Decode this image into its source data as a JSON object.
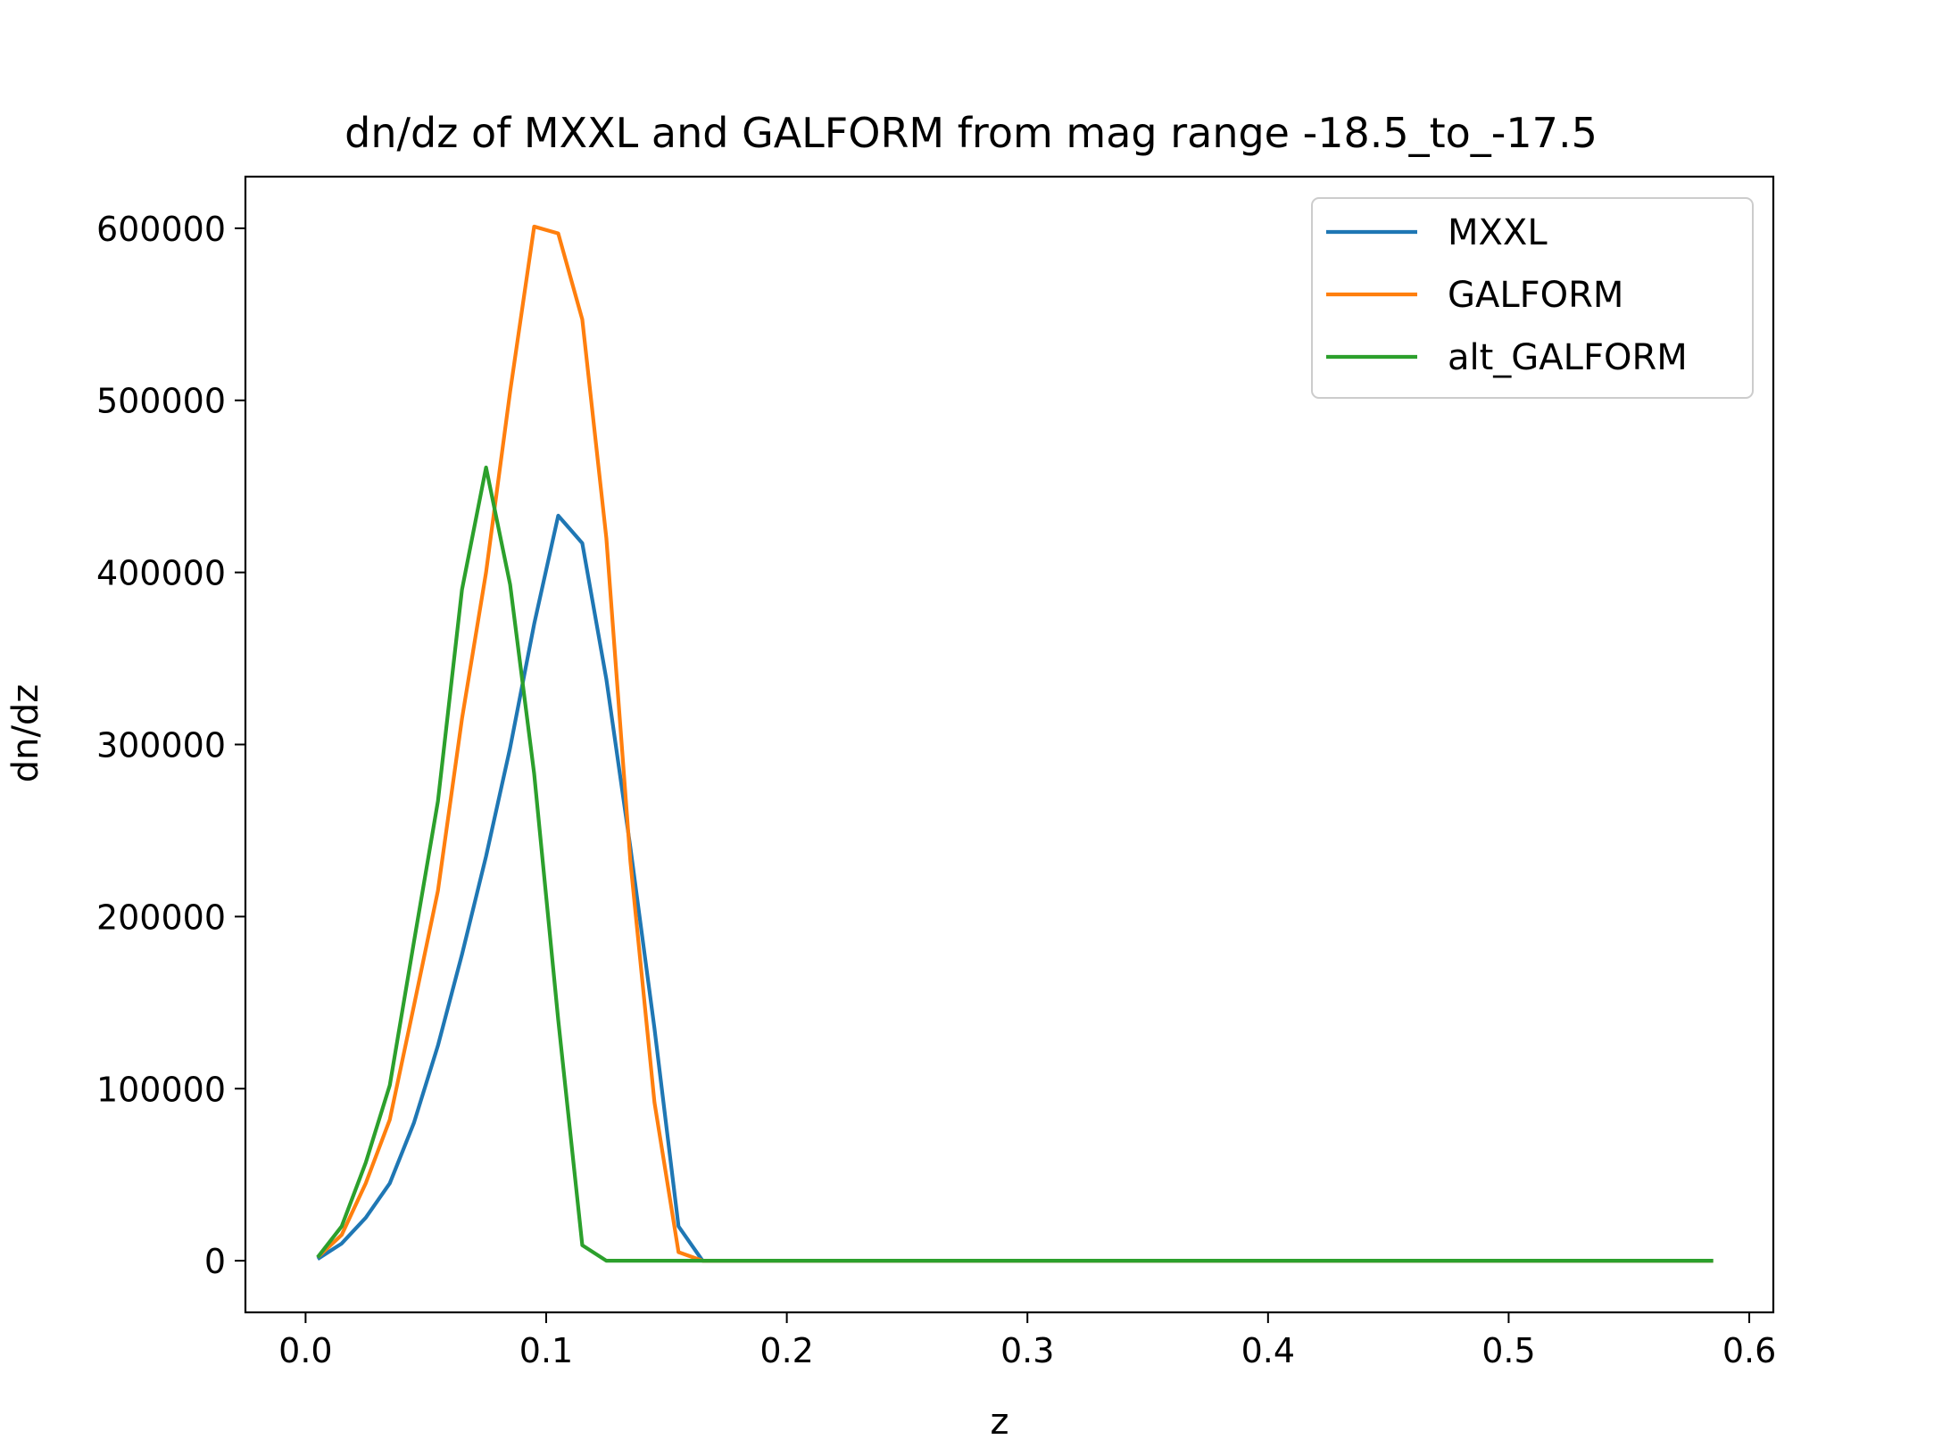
{
  "chart_data": {
    "type": "line",
    "title": "dn/dz of MXXL and GALFORM from mag range -18.5_to_-17.5",
    "xlabel": "z",
    "ylabel": "dn/dz",
    "xlim": [
      -0.025,
      0.61
    ],
    "ylim": [
      -30000,
      630000
    ],
    "xticks": [
      0.0,
      0.1,
      0.2,
      0.3,
      0.4,
      0.5,
      0.6
    ],
    "xtick_labels": [
      "0.0",
      "0.1",
      "0.2",
      "0.3",
      "0.4",
      "0.5",
      "0.6"
    ],
    "yticks": [
      0,
      100000,
      200000,
      300000,
      400000,
      500000,
      600000
    ],
    "ytick_labels": [
      "0",
      "100000",
      "200000",
      "300000",
      "400000",
      "500000",
      "600000"
    ],
    "grid": false,
    "legend_position": "top-right",
    "x": [
      0.005,
      0.015,
      0.025,
      0.035,
      0.045,
      0.055,
      0.065,
      0.075,
      0.085,
      0.095,
      0.105,
      0.115,
      0.125,
      0.135,
      0.145,
      0.155,
      0.165,
      0.175,
      0.185,
      0.195,
      0.205,
      0.215,
      0.225,
      0.235,
      0.245,
      0.255,
      0.265,
      0.275,
      0.285,
      0.295,
      0.305,
      0.315,
      0.325,
      0.335,
      0.345,
      0.355,
      0.365,
      0.375,
      0.385,
      0.395,
      0.405,
      0.415,
      0.425,
      0.435,
      0.445,
      0.455,
      0.465,
      0.475,
      0.485,
      0.495,
      0.505,
      0.515,
      0.525,
      0.535,
      0.545,
      0.555,
      0.565,
      0.575,
      0.585
    ],
    "series": [
      {
        "name": "MXXL",
        "color": "#1f77b4",
        "values": [
          1000,
          10000,
          25000,
          45000,
          80000,
          125000,
          178000,
          235000,
          298000,
          370000,
          433000,
          417000,
          338000,
          240000,
          135000,
          20000,
          0,
          0,
          0,
          0,
          0,
          0,
          0,
          0,
          0,
          0,
          0,
          0,
          0,
          0,
          0,
          0,
          0,
          0,
          0,
          0,
          0,
          0,
          0,
          0,
          0,
          0,
          0,
          0,
          0,
          0,
          0,
          0,
          0,
          0,
          0,
          0,
          0,
          0,
          0,
          0,
          0,
          0,
          0
        ]
      },
      {
        "name": "GALFORM",
        "color": "#ff7f0e",
        "values": [
          2000,
          15000,
          45000,
          82000,
          148000,
          215000,
          315000,
          400000,
          505000,
          601000,
          597000,
          547000,
          420000,
          232000,
          92000,
          5000,
          0,
          0,
          0,
          0,
          0,
          0,
          0,
          0,
          0,
          0,
          0,
          0,
          0,
          0,
          0,
          0,
          0,
          0,
          0,
          0,
          0,
          0,
          0,
          0,
          0,
          0,
          0,
          0,
          0,
          0,
          0,
          0,
          0,
          0,
          0,
          0,
          0,
          0,
          0,
          0,
          0,
          0,
          0
        ]
      },
      {
        "name": "alt_GALFORM",
        "color": "#2ca02c",
        "values": [
          2000,
          20000,
          57000,
          102000,
          185000,
          267000,
          390000,
          461000,
          393000,
          283000,
          140000,
          9000,
          0,
          0,
          0,
          0,
          0,
          0,
          0,
          0,
          0,
          0,
          0,
          0,
          0,
          0,
          0,
          0,
          0,
          0,
          0,
          0,
          0,
          0,
          0,
          0,
          0,
          0,
          0,
          0,
          0,
          0,
          0,
          0,
          0,
          0,
          0,
          0,
          0,
          0,
          0,
          0,
          0,
          0,
          0,
          0,
          0,
          0,
          0
        ]
      }
    ]
  }
}
